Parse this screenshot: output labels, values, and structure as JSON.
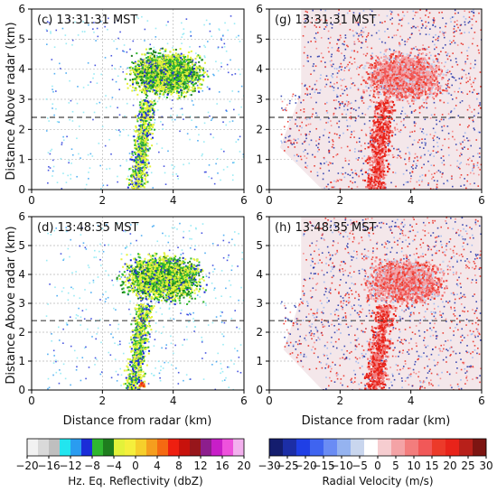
{
  "figure": {
    "ylabel": "Distance Above radar (km)",
    "xlabel": "Distance from radar (km)"
  },
  "chart_data": [
    {
      "type": "heatmap",
      "panel": "c",
      "title": "(c) 13:31:31 MST",
      "xlim": [
        0,
        6
      ],
      "ylim": [
        0,
        6
      ],
      "xticks": [
        0,
        2,
        4,
        6
      ],
      "yticks": [
        0,
        1,
        2,
        3,
        4,
        5,
        6
      ],
      "grid": true,
      "reference_line_km": 2.4,
      "variable": "Hz. Eq. Reflectivity (dbZ)"
    },
    {
      "type": "heatmap",
      "panel": "g",
      "title": "(g) 13:31:31 MST",
      "xlim": [
        0,
        6
      ],
      "ylim": [
        0,
        6
      ],
      "xticks": [
        0,
        2,
        4,
        6
      ],
      "yticks": [
        0,
        1,
        2,
        3,
        4,
        5,
        6
      ],
      "grid": true,
      "reference_line_km": 2.4,
      "variable": "Radial Velocity (m/s)"
    },
    {
      "type": "heatmap",
      "panel": "d",
      "title": "(d) 13:48:35 MST",
      "xlim": [
        0,
        6
      ],
      "ylim": [
        0,
        6
      ],
      "xticks": [
        0,
        2,
        4,
        6
      ],
      "yticks": [
        0,
        1,
        2,
        3,
        4,
        5,
        6
      ],
      "grid": true,
      "reference_line_km": 2.4,
      "variable": "Hz. Eq. Reflectivity (dbZ)"
    },
    {
      "type": "heatmap",
      "panel": "h",
      "title": "(h) 13:48:35 MST",
      "xlim": [
        0,
        6
      ],
      "ylim": [
        0,
        6
      ],
      "xticks": [
        0,
        2,
        4,
        6
      ],
      "yticks": [
        0,
        1,
        2,
        3,
        4,
        5,
        6
      ],
      "grid": true,
      "reference_line_km": 2.4,
      "variable": "Radial Velocity (m/s)"
    }
  ],
  "colorbars": {
    "reflectivity": {
      "label": "Hz. Eq. Reflectivity (dbZ)",
      "tick_labels": [
        "−20",
        "−16",
        "−12",
        "−8",
        "−4",
        "0",
        "4",
        "8",
        "12",
        "16",
        "20"
      ],
      "colors": [
        "#f2f2f2",
        "#d9d9d9",
        "#bfbfbf",
        "#22e5ef",
        "#2a9cf0",
        "#1b2dd8",
        "#2fb72f",
        "#1e7d1e",
        "#e3f23a",
        "#f5ef3c",
        "#f6cf2b",
        "#f59e1e",
        "#f56a12",
        "#ee1f10",
        "#c8120c",
        "#97161b",
        "#8d1e8d",
        "#c81ec8",
        "#ee52dc",
        "#f3b0ee"
      ]
    },
    "velocity": {
      "label": "Radial Velocity (m/s)",
      "tick_labels": [
        "−30",
        "−25",
        "−20",
        "−15",
        "−10",
        "−5",
        "0",
        "5",
        "10",
        "15",
        "20",
        "25",
        "30"
      ],
      "colors": [
        "#141d6e",
        "#1c2ea6",
        "#1f3fe6",
        "#3f64f0",
        "#6a8cf4",
        "#95b3f0",
        "#c9d6ee",
        "#ffffff",
        "#f6cdd0",
        "#f4a3a6",
        "#f37d7d",
        "#f15858",
        "#ec3a2a",
        "#e8231a",
        "#b8201a",
        "#7d1512"
      ]
    }
  }
}
